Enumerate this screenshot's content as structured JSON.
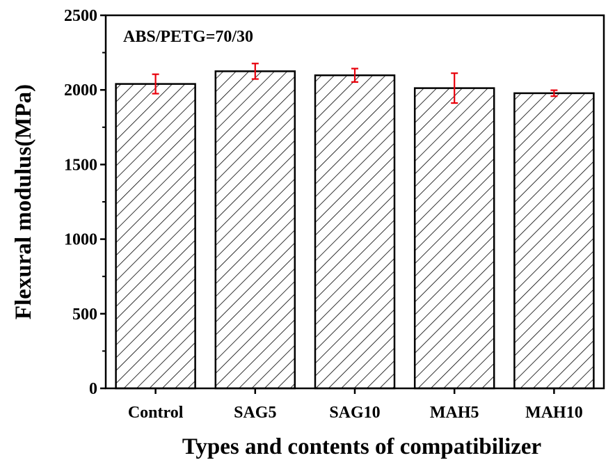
{
  "chart_data": {
    "type": "bar",
    "categories": [
      "Control",
      "SAG5",
      "SAG10",
      "MAH5",
      "MAH10"
    ],
    "values": [
      2040,
      2125,
      2098,
      2012,
      1978
    ],
    "errors": [
      65,
      52,
      45,
      100,
      20
    ],
    "xlabel": "Types and contents of compatibilizer",
    "ylabel": "Flexural  modulus(MPa)",
    "ylim": [
      0,
      2500
    ],
    "yticks": [
      0,
      500,
      1000,
      1500,
      2000,
      2500
    ],
    "annotation": "ABS/PETG=70/30",
    "grid": false,
    "bar_fill": "diagonal-hatch",
    "colors": {
      "bar_stroke": "#000000",
      "hatch": "#000000",
      "error_bar": "#e8000b",
      "axis": "#000000"
    }
  }
}
